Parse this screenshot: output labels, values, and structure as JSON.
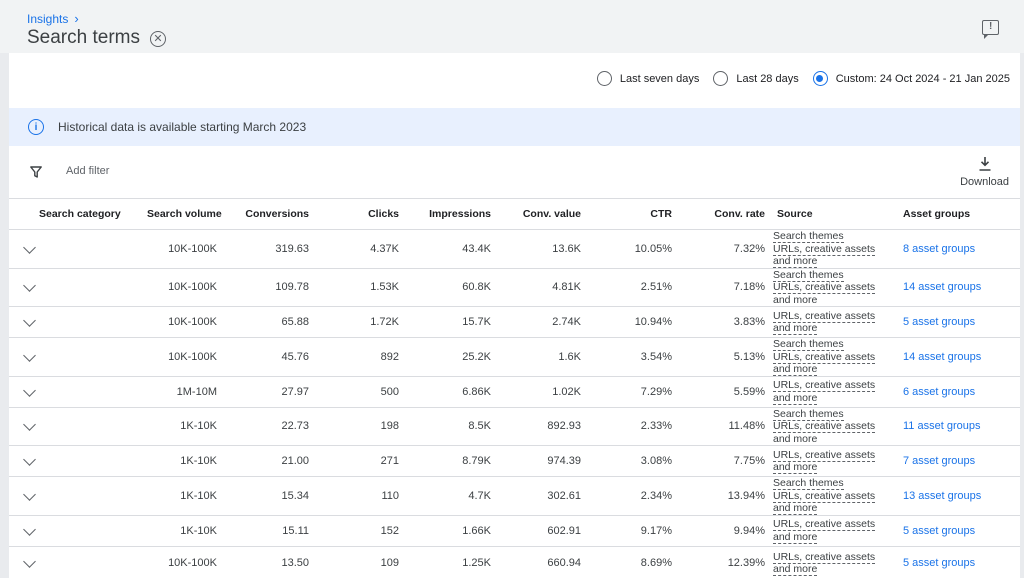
{
  "header": {
    "breadcrumb": "Insights",
    "title": "Search terms"
  },
  "date_range": {
    "options": [
      {
        "label": "Last seven days",
        "checked": false
      },
      {
        "label": "Last 28 days",
        "checked": false
      },
      {
        "label": "Custom: 24 Oct 2024 - 21 Jan 2025",
        "checked": true
      }
    ]
  },
  "banner": {
    "text": "Historical data is available starting March 2023"
  },
  "toolbar": {
    "add_filter": "Add filter",
    "download": "Download"
  },
  "table": {
    "columns": [
      "Search category",
      "Search volume",
      "Conversions",
      "Clicks",
      "Impressions",
      "Conv. value",
      "CTR",
      "Conv. rate",
      "Source",
      "Asset groups"
    ],
    "rows": [
      {
        "category": "",
        "volume": "10K-100K",
        "conversions": "319.63",
        "clicks": "4.37K",
        "impressions": "43.4K",
        "conv_value": "13.6K",
        "ctr": "10.05%",
        "conv_rate": "7.32%",
        "source": [
          "Search themes",
          "URLs, creative assets",
          "and more"
        ],
        "assets": "8 asset groups"
      },
      {
        "category": "",
        "volume": "10K-100K",
        "conversions": "109.78",
        "clicks": "1.53K",
        "impressions": "60.8K",
        "conv_value": "4.81K",
        "ctr": "2.51%",
        "conv_rate": "7.18%",
        "source": [
          "Search themes",
          "URLs, creative assets",
          "and more"
        ],
        "assets": "14 asset groups"
      },
      {
        "category": "",
        "volume": "10K-100K",
        "conversions": "65.88",
        "clicks": "1.72K",
        "impressions": "15.7K",
        "conv_value": "2.74K",
        "ctr": "10.94%",
        "conv_rate": "3.83%",
        "source": [
          "URLs, creative assets",
          "and more"
        ],
        "assets": "5 asset groups"
      },
      {
        "category": "",
        "volume": "10K-100K",
        "conversions": "45.76",
        "clicks": "892",
        "impressions": "25.2K",
        "conv_value": "1.6K",
        "ctr": "3.54%",
        "conv_rate": "5.13%",
        "source": [
          "Search themes",
          "URLs, creative assets",
          "and more"
        ],
        "assets": "14 asset groups"
      },
      {
        "category": "",
        "volume": "1M-10M",
        "conversions": "27.97",
        "clicks": "500",
        "impressions": "6.86K",
        "conv_value": "1.02K",
        "ctr": "7.29%",
        "conv_rate": "5.59%",
        "source": [
          "URLs, creative assets",
          "and more"
        ],
        "assets": "6 asset groups"
      },
      {
        "category": "",
        "volume": "1K-10K",
        "conversions": "22.73",
        "clicks": "198",
        "impressions": "8.5K",
        "conv_value": "892.93",
        "ctr": "2.33%",
        "conv_rate": "11.48%",
        "source": [
          "Search themes",
          "URLs, creative assets",
          "and more"
        ],
        "assets": "11 asset groups"
      },
      {
        "category": "",
        "volume": "1K-10K",
        "conversions": "21.00",
        "clicks": "271",
        "impressions": "8.79K",
        "conv_value": "974.39",
        "ctr": "3.08%",
        "conv_rate": "7.75%",
        "source": [
          "URLs, creative assets",
          "and more"
        ],
        "assets": "7 asset groups"
      },
      {
        "category": "",
        "volume": "1K-10K",
        "conversions": "15.34",
        "clicks": "110",
        "impressions": "4.7K",
        "conv_value": "302.61",
        "ctr": "2.34%",
        "conv_rate": "13.94%",
        "source": [
          "Search themes",
          "URLs, creative assets",
          "and more"
        ],
        "assets": "13 asset groups"
      },
      {
        "category": "",
        "volume": "1K-10K",
        "conversions": "15.11",
        "clicks": "152",
        "impressions": "1.66K",
        "conv_value": "602.91",
        "ctr": "9.17%",
        "conv_rate": "9.94%",
        "source": [
          "URLs, creative assets",
          "and more"
        ],
        "assets": "5 asset groups"
      },
      {
        "category": "",
        "volume": "10K-100K",
        "conversions": "13.50",
        "clicks": "109",
        "impressions": "1.25K",
        "conv_value": "660.94",
        "ctr": "8.69%",
        "conv_rate": "12.39%",
        "source": [
          "URLs, creative assets",
          "and more"
        ],
        "assets": "5 asset groups"
      }
    ]
  }
}
